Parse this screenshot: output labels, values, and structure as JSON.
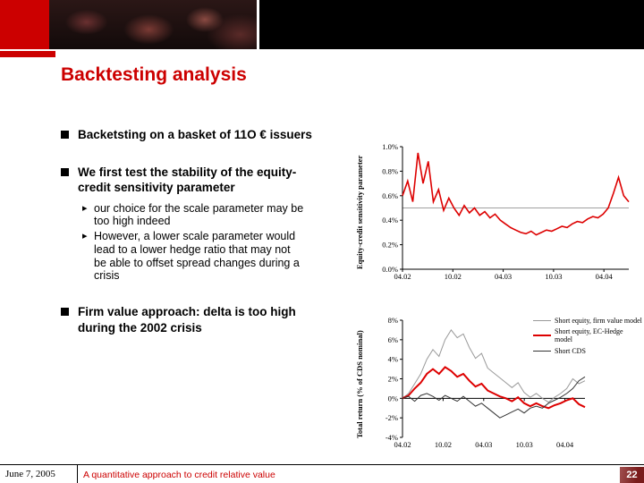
{
  "slide": {
    "title": "Backtesting analysis",
    "bullets": [
      {
        "label": "Backetsting on a basket of 11O € issuers"
      },
      {
        "label": "We first test the stability of the equity-credit sensitivity parameter",
        "subs": [
          "our choice for the scale parameter may be too high indeed",
          "However, a lower scale parameter would lead to a lower hedge ratio that may not be able to offset spread changes during a crisis"
        ]
      },
      {
        "label": "Firm value approach: delta is too high during the 2002 crisis"
      }
    ],
    "footer": {
      "date": "June 7, 2005",
      "subtitle": "A quantitative approach to credit relative value",
      "page_number": "22"
    },
    "colors": {
      "accent_red": "#cc0000",
      "chart_red": "#dd0000",
      "page_box_red": "#7a1c1c"
    }
  },
  "chart_data": [
    {
      "type": "line",
      "title": "",
      "ylabel": "Equity-credit sensitivity parameter",
      "yticks": [
        "1.0%",
        "0.8%",
        "0.6%",
        "0.4%",
        "0.2%",
        "0.0%"
      ],
      "ylim": [
        0,
        1.0
      ],
      "xticks": [
        "04.02",
        "10.02",
        "04.03",
        "10.03",
        "04.04"
      ],
      "grid": false,
      "ref_line": 0.5,
      "legend_position": "none",
      "series": [
        {
          "name": "Equity-credit sensitivity parameter",
          "color": "#dd0000",
          "width": 1.6,
          "values": [
            0.6,
            0.72,
            0.55,
            0.95,
            0.7,
            0.88,
            0.55,
            0.65,
            0.48,
            0.58,
            0.5,
            0.44,
            0.52,
            0.46,
            0.5,
            0.44,
            0.47,
            0.42,
            0.45,
            0.4,
            0.37,
            0.34,
            0.32,
            0.3,
            0.29,
            0.31,
            0.28,
            0.3,
            0.32,
            0.31,
            0.33,
            0.35,
            0.34,
            0.37,
            0.39,
            0.38,
            0.41,
            0.43,
            0.42,
            0.45,
            0.5,
            0.62,
            0.75,
            0.6,
            0.55
          ]
        }
      ]
    },
    {
      "type": "line",
      "title": "",
      "ylabel": "Total return (% of CDS nominal)",
      "yticks": [
        "8%",
        "6%",
        "4%",
        "2%",
        "0%",
        "-2%",
        "-4%"
      ],
      "ylim": [
        -4,
        8
      ],
      "xticks": [
        "04.02",
        "10.02",
        "04.03",
        "10.03",
        "04.04"
      ],
      "grid": false,
      "legend_position": "right",
      "series": [
        {
          "name": "Short equity, firm value model",
          "color": "#999999",
          "width": 1,
          "values": [
            0,
            0.5,
            1.5,
            2.5,
            4.0,
            5.0,
            4.3,
            6.0,
            7.0,
            6.2,
            6.6,
            5.2,
            4.1,
            4.6,
            3.1,
            2.6,
            2.1,
            1.6,
            1.1,
            1.6,
            0.6,
            0.1,
            0.5,
            0.0,
            -0.4,
            0.1,
            0.5,
            1.0,
            2.0,
            1.5,
            1.8
          ]
        },
        {
          "name": "Short equity, EC-Hedge model",
          "color": "#dd0000",
          "width": 2,
          "values": [
            0,
            0.3,
            1.0,
            1.6,
            2.5,
            3.0,
            2.5,
            3.2,
            2.8,
            2.2,
            2.5,
            1.8,
            1.2,
            1.5,
            0.8,
            0.5,
            0.2,
            0.0,
            -0.3,
            0.1,
            -0.5,
            -0.8,
            -0.5,
            -0.8,
            -1.0,
            -0.7,
            -0.5,
            -0.2,
            0.0,
            -0.6,
            -0.9
          ]
        },
        {
          "name": "Short CDS",
          "color": "#333333",
          "width": 1,
          "values": [
            0,
            0.2,
            -0.3,
            0.3,
            0.5,
            0.2,
            -0.2,
            0.3,
            0.0,
            -0.3,
            0.2,
            -0.3,
            -0.8,
            -0.5,
            -1.0,
            -1.5,
            -2.0,
            -1.7,
            -1.4,
            -1.1,
            -1.5,
            -1.0,
            -0.8,
            -1.0,
            -0.5,
            -0.2,
            0.1,
            0.5,
            1.0,
            1.8,
            2.2
          ]
        }
      ]
    }
  ]
}
